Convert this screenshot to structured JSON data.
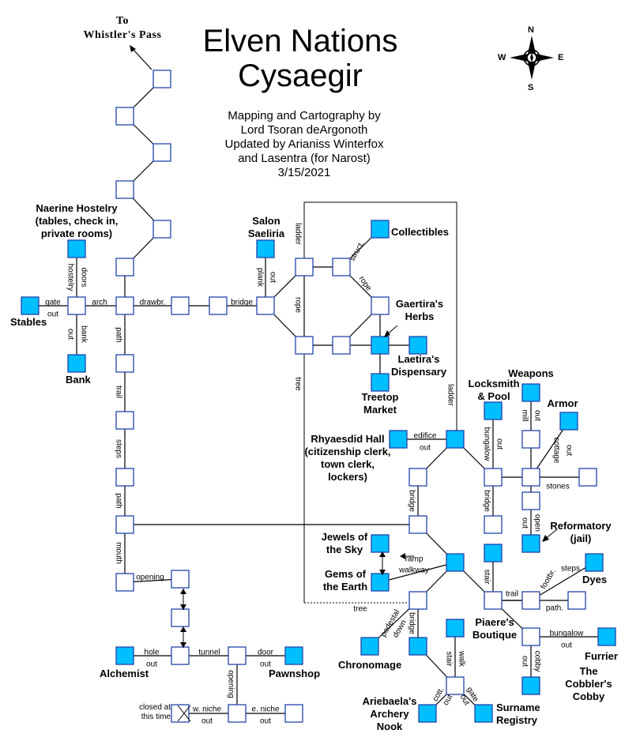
{
  "title": [
    "Elven Nations",
    "Cysaegir"
  ],
  "credits": [
    "Mapping and Cartography by",
    "Lord Tsoran deArgonoth",
    "Updated by Arianiss Winterfox",
    "and Lasentra (for Narost)",
    "3/15/2021"
  ],
  "exit_to": [
    "To",
    "Whistler's Pass"
  ],
  "compass": {
    "n": "N",
    "s": "S",
    "e": "E",
    "w": "W"
  },
  "colors": {
    "shop": "#00bfff",
    "room": "#ffffff",
    "border": "#2244aa"
  },
  "places": {
    "naerine": [
      "Naerine Hostelry",
      "(tables, check in,",
      "private rooms)"
    ],
    "stables": "Stables",
    "bank": "Bank",
    "salon": [
      "Salon",
      "Saeliria"
    ],
    "collectibles": "Collectibles",
    "gaertira": [
      "Gaertira's",
      "Herbs"
    ],
    "laetira": [
      "Laetira's",
      "Dispensary"
    ],
    "treetop": [
      "Treetop",
      "Market"
    ],
    "weapons": "Weapons",
    "locksmith": [
      "Locksmith",
      "& Pool"
    ],
    "armor": "Armor",
    "rhyaesdid": [
      "Rhyaesdid Hall",
      "(citizenship clerk,",
      "town clerk,",
      "lockers)"
    ],
    "reformatory": [
      "Reformatory",
      "(jail)"
    ],
    "jewels": [
      "Jewels of",
      "the Sky"
    ],
    "gems": [
      "Gems of",
      "the Earth"
    ],
    "dyes": "Dyes",
    "piaere": [
      "Piaere's",
      "Boutique"
    ],
    "furrier": "Furrier",
    "cobbler": [
      "The",
      "Cobbler's",
      "Cobby"
    ],
    "chronomage": "Chronomage",
    "archery": [
      "Ariebaela's",
      "Archery",
      "Nook"
    ],
    "surname": [
      "Surname",
      "Registry"
    ],
    "alchemist": "Alchemist",
    "pawnshop": "Pawnshop",
    "closed": [
      "closed at",
      "this time"
    ]
  },
  "edges": {
    "gate": "gate",
    "out": "out",
    "arch": "arch",
    "hostelry": "hostelry",
    "doors": "doors",
    "bank": "bank",
    "drawbr": "drawbr.",
    "bridge": "bridge",
    "plank": "plank",
    "path": "path",
    "trail": "trail",
    "steps": "steps",
    "mouth": "mouth",
    "opening": "opening",
    "hole": "hole",
    "tunnel": "tunnel",
    "door": "door",
    "w_niche": "w. niche",
    "e_niche": "e. niche",
    "ladder": "ladder",
    "struct": "struct.",
    "rope": "rope",
    "tree": "tree",
    "edifice": "edifice",
    "bungalow": "bungalow",
    "mill": "mill",
    "cottage": "cottage",
    "stones": "stones",
    "open": "open",
    "ramp": "ramp",
    "walkway": "walkway",
    "stair": "stair",
    "footbr": "footbr.",
    "path_dot": "path.",
    "pedestal": "pedestal",
    "down": "down",
    "walk": "walk",
    "cott": "cott.",
    "cobby": "cobby"
  }
}
